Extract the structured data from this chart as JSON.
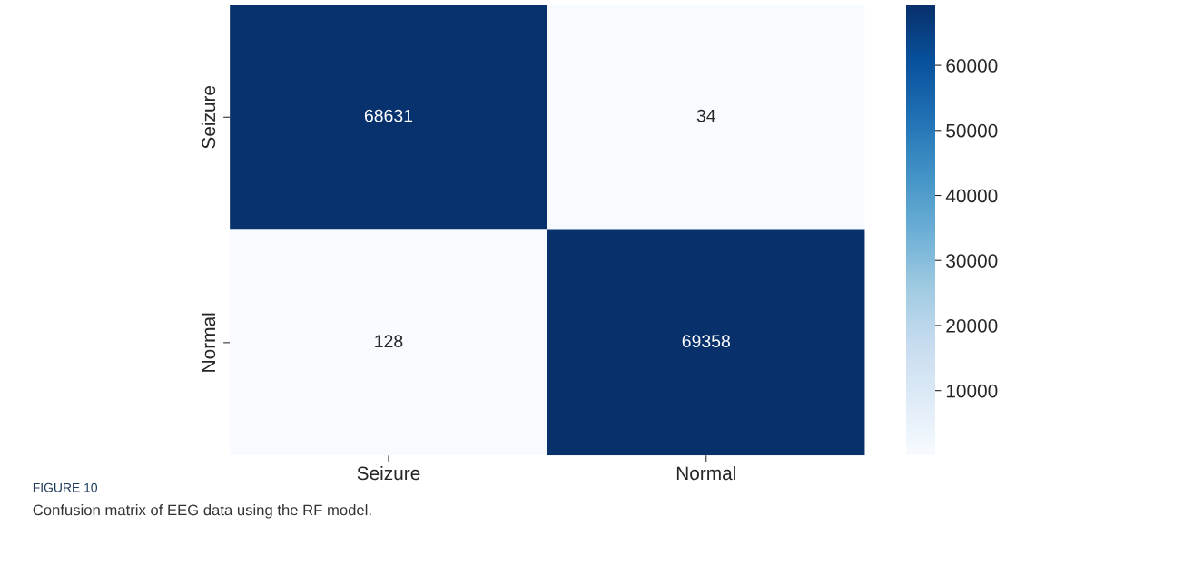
{
  "chart_data": {
    "type": "heatmap",
    "categories": [
      "Seizure",
      "Normal"
    ],
    "y_categories": [
      "Seizure",
      "Normal"
    ],
    "cells": [
      [
        68631,
        34
      ],
      [
        128,
        69358
      ]
    ],
    "data_labels": true,
    "clim": [
      34,
      69358
    ],
    "cticks": [
      10000,
      20000,
      30000,
      40000,
      50000,
      60000
    ],
    "annotations": [
      "FIGURE 10",
      "Confusion matrix of EEG data using the RF model."
    ]
  }
}
